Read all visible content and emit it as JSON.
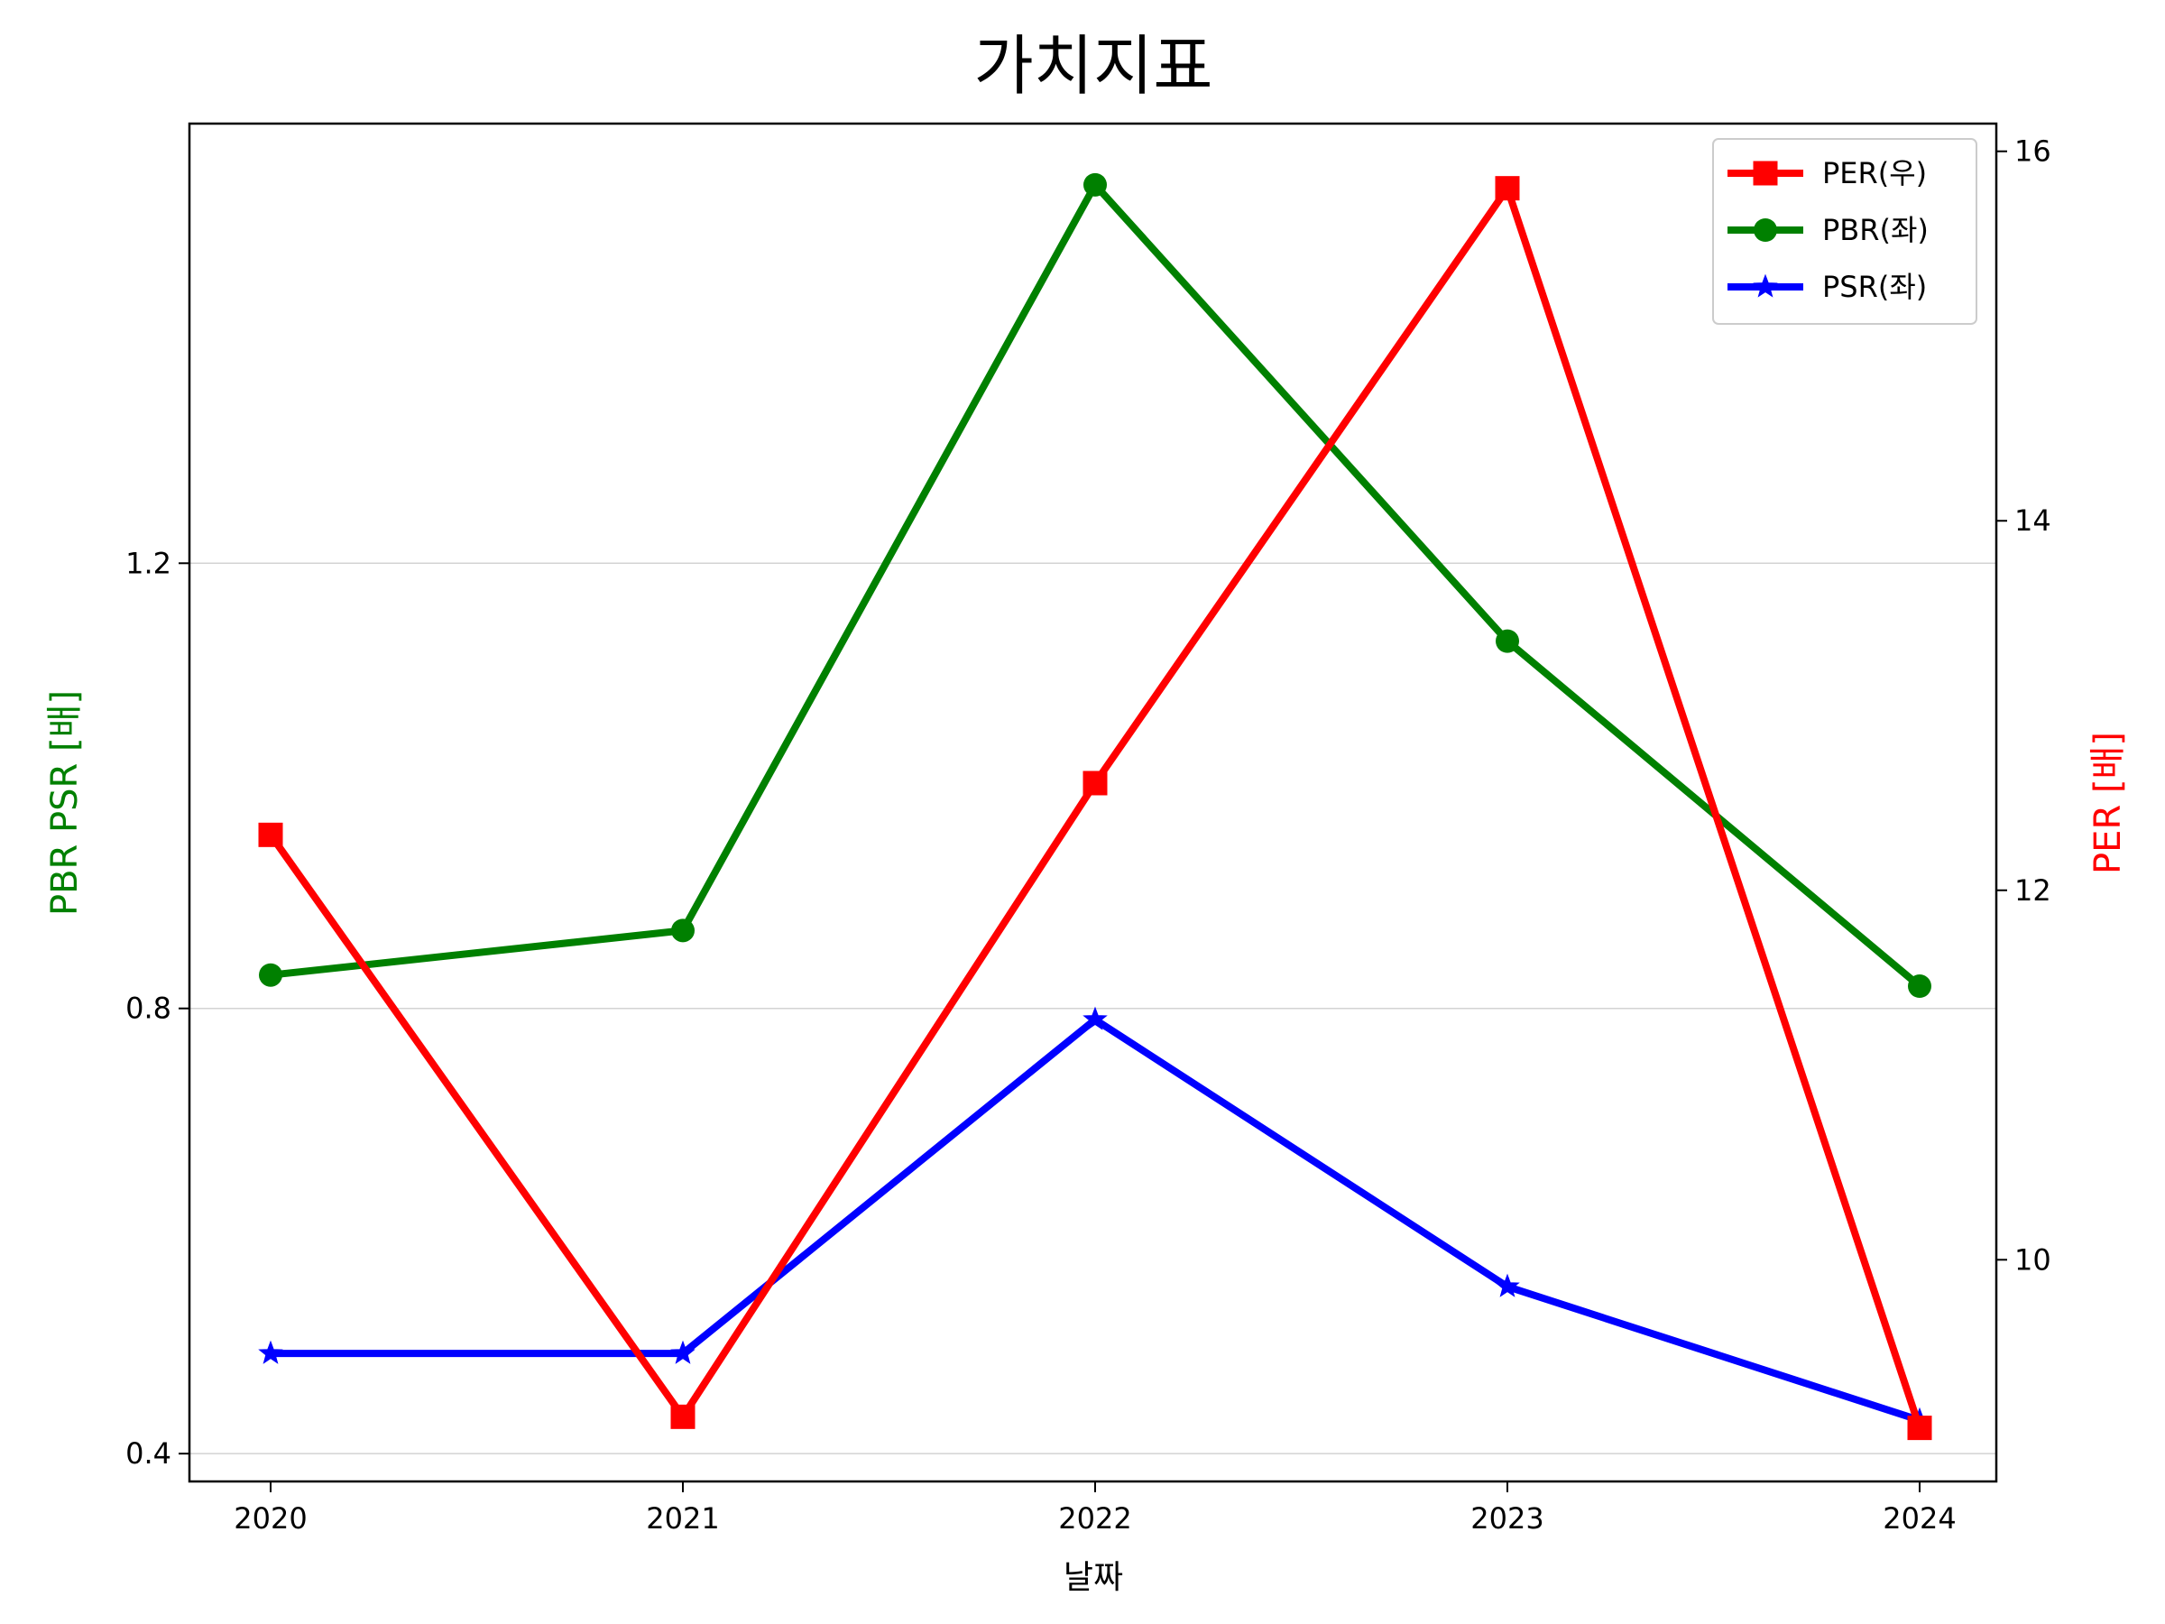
{
  "chart_data": {
    "type": "line",
    "title": "가치지표",
    "xlabel": "날짜",
    "ylabel_left": "PBR PSR [배]",
    "ylabel_right": "PER [배]",
    "categories": [
      "2020",
      "2021",
      "2022",
      "2023",
      "2024"
    ],
    "left_axis": {
      "ylim": [
        0.375,
        1.595
      ],
      "ticks": [
        "0.4",
        "0.8",
        "1.2"
      ],
      "grid": true
    },
    "right_axis": {
      "ylim": [
        8.8,
        16.15
      ],
      "ticks": [
        "10",
        "12",
        "14",
        "16"
      ]
    },
    "legend_position": "top-right",
    "series": [
      {
        "name": "PER(우)",
        "axis": "right",
        "color": "#ff0000",
        "marker": "square",
        "values": [
          12.3,
          9.15,
          12.58,
          15.8,
          9.09
        ]
      },
      {
        "name": "PBR(좌)",
        "axis": "left",
        "color": "#008000",
        "marker": "circle",
        "values": [
          0.83,
          0.87,
          1.54,
          1.13,
          0.82
        ]
      },
      {
        "name": "PSR(좌)",
        "axis": "left",
        "color": "#0000ff",
        "marker": "star",
        "values": [
          0.49,
          0.49,
          0.79,
          0.55,
          0.43
        ]
      }
    ]
  }
}
